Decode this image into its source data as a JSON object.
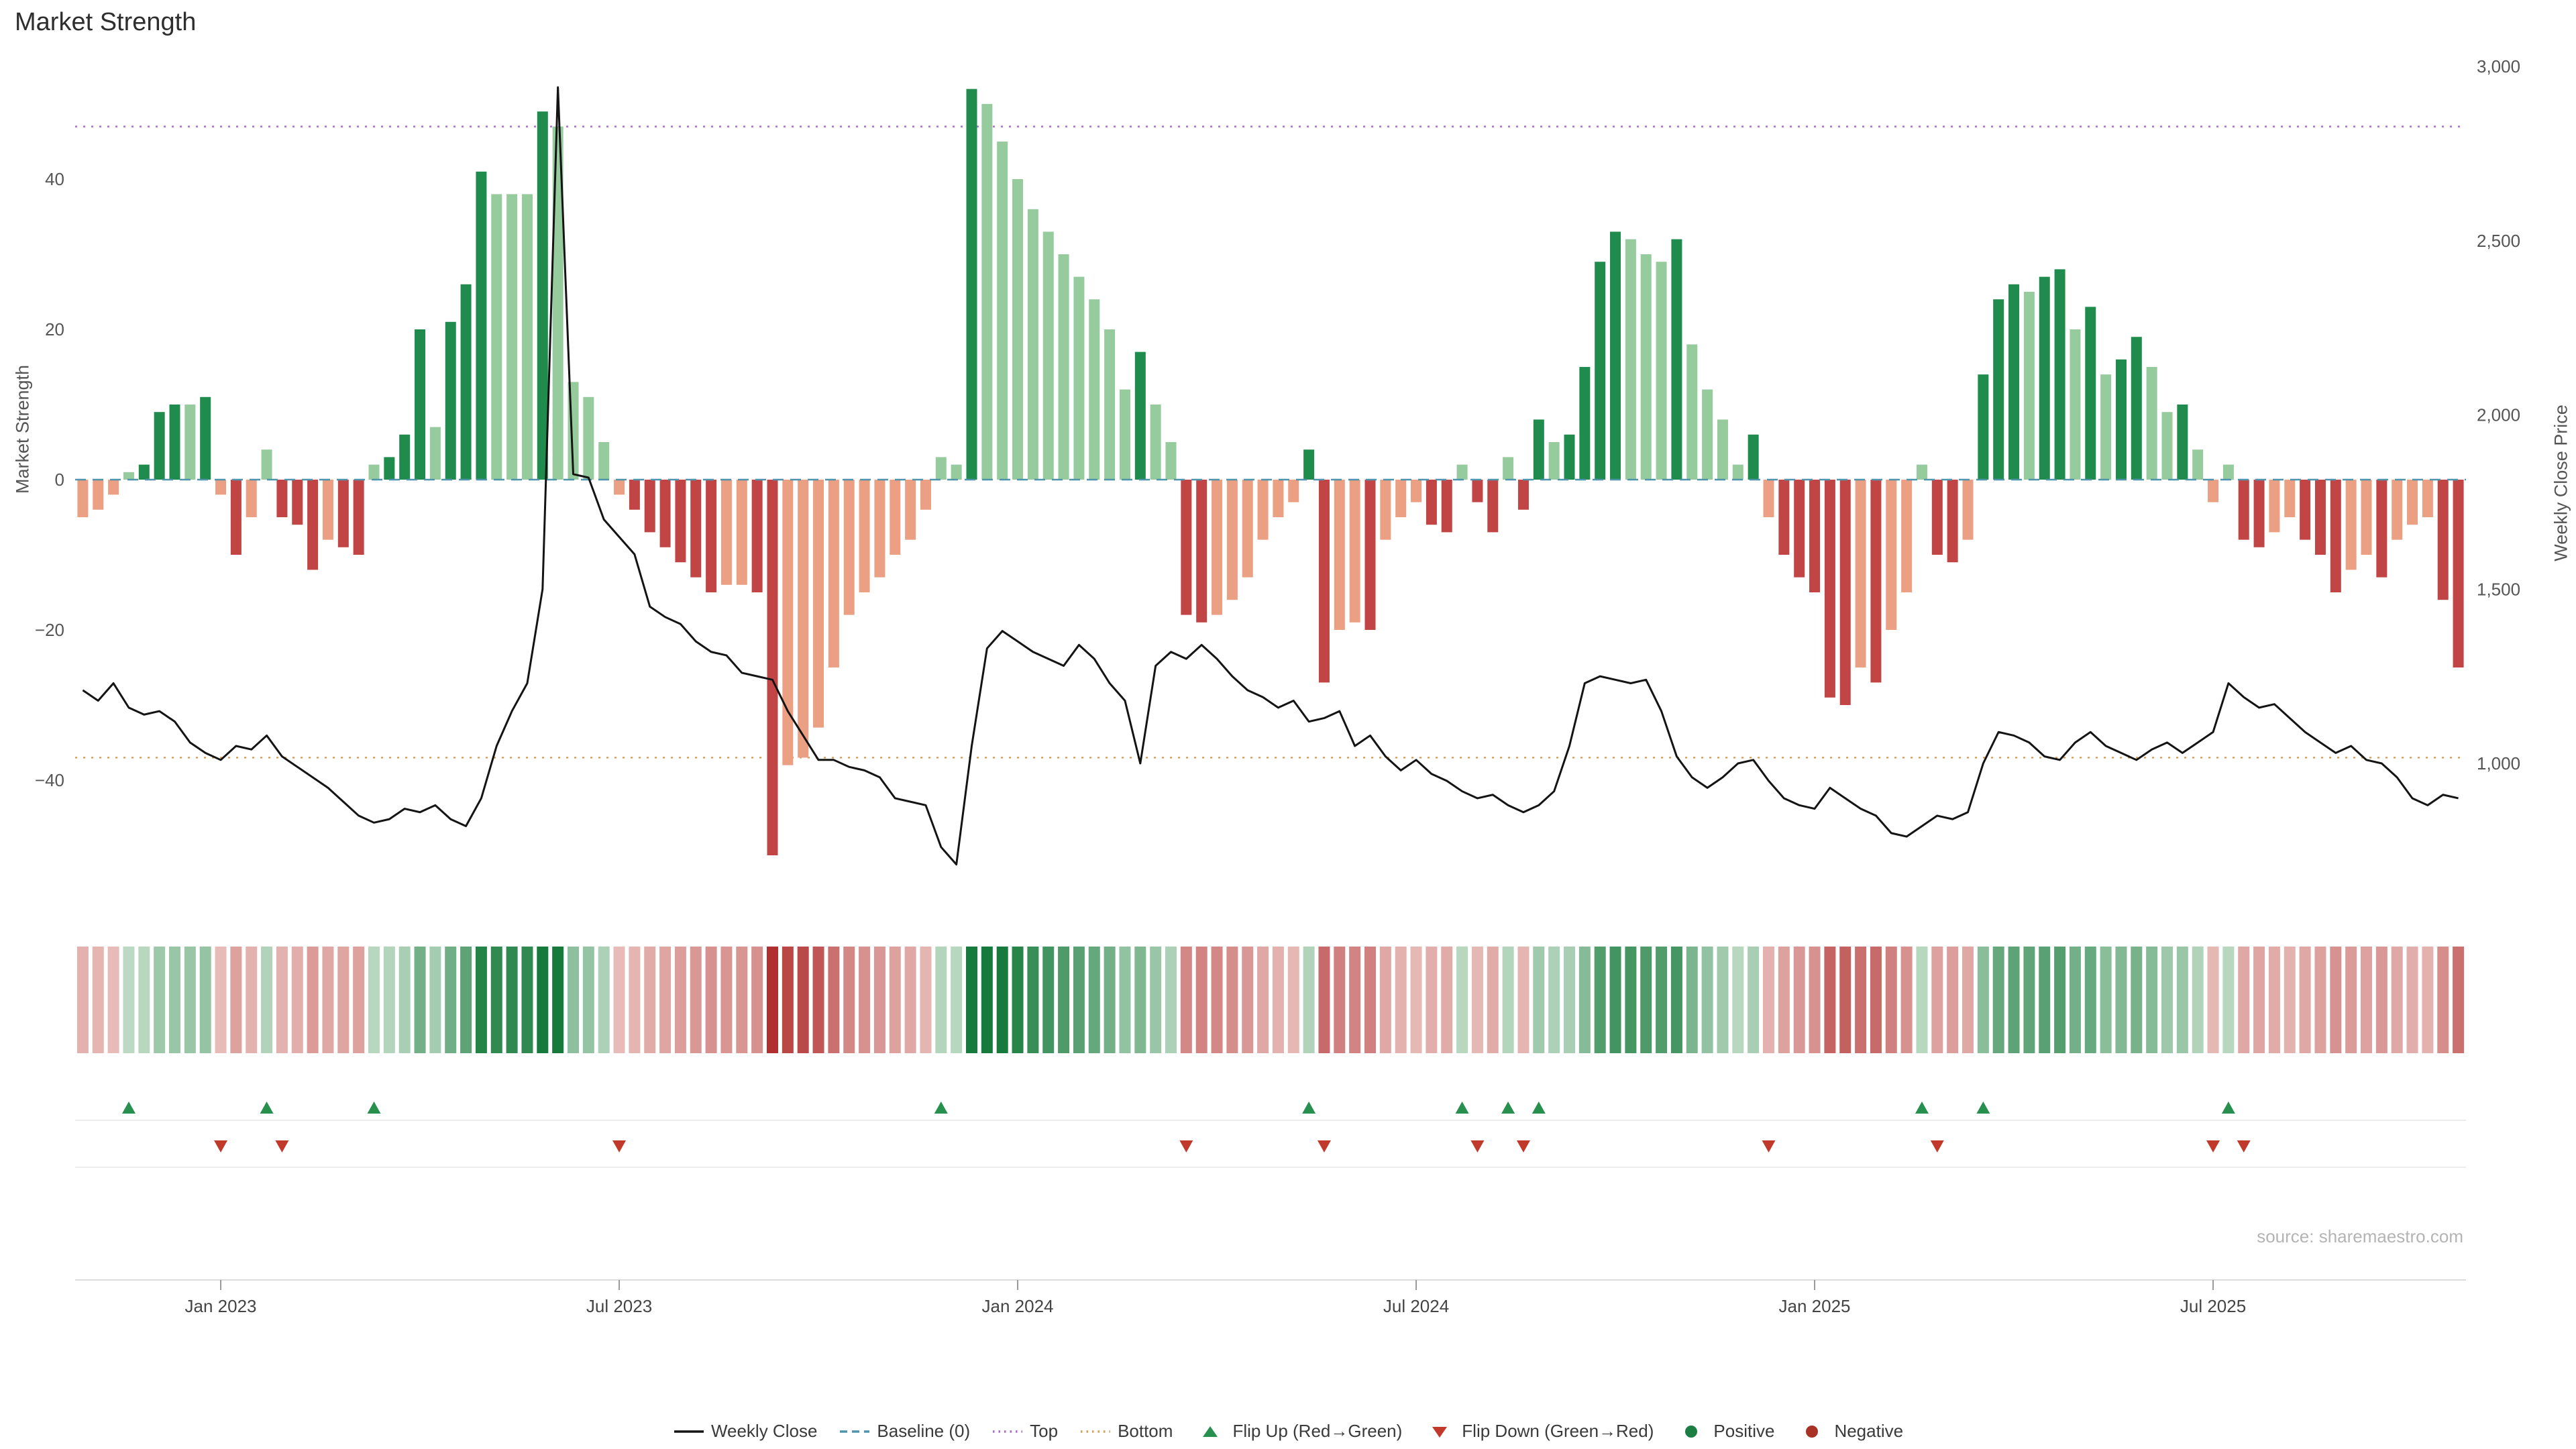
{
  "title": "Market Strength",
  "source": "source: sharemaestro.com",
  "axes": {
    "left": {
      "label": "Market Strength",
      "ticks": [
        {
          "label": "40",
          "value": 40
        },
        {
          "label": "20",
          "value": 20
        },
        {
          "label": "0",
          "value": 0
        },
        {
          "label": "−20",
          "value": -20
        },
        {
          "label": "−40",
          "value": -40
        }
      ]
    },
    "right": {
      "label": "Weekly Close Price",
      "ticks": [
        {
          "label": "3,000",
          "value": 3000
        },
        {
          "label": "2,500",
          "value": 2500
        },
        {
          "label": "2,000",
          "value": 2000
        },
        {
          "label": "1,500",
          "value": 1500
        },
        {
          "label": "1,000",
          "value": 1000
        }
      ]
    },
    "x": {
      "ticks": [
        {
          "label": "Jan 2023",
          "index": 9
        },
        {
          "label": "Jul 2023",
          "index": 35
        },
        {
          "label": "Jan 2024",
          "index": 61
        },
        {
          "label": "Jul 2024",
          "index": 87
        },
        {
          "label": "Jan 2025",
          "index": 113
        },
        {
          "label": "Jul 2025",
          "index": 139
        }
      ]
    }
  },
  "chart_data": {
    "type": "combo",
    "x_unit": "week-index",
    "n_points": 156,
    "series": [
      {
        "name": "Market Strength",
        "type": "bar",
        "axis": "left",
        "values": [
          -5,
          -4,
          -2,
          1,
          2,
          9,
          10,
          10,
          11,
          -2,
          -10,
          -5,
          4,
          -5,
          -6,
          -12,
          -8,
          -9,
          -10,
          2,
          3,
          6,
          20,
          7,
          21,
          26,
          41,
          38,
          38,
          38,
          49,
          47,
          13,
          11,
          5,
          -2,
          -4,
          -7,
          -9,
          -11,
          -13,
          -15,
          -14,
          -14,
          -15,
          -50,
          -38,
          -37,
          -33,
          -25,
          -18,
          -15,
          -13,
          -10,
          -8,
          -4,
          3,
          2,
          52,
          50,
          45,
          40,
          36,
          33,
          30,
          27,
          24,
          20,
          12,
          17,
          10,
          5,
          -18,
          -19,
          -18,
          -16,
          -13,
          -8,
          -5,
          -3,
          4,
          -27,
          -20,
          -19,
          -20,
          -8,
          -5,
          -3,
          -6,
          -7,
          2,
          -3,
          -7,
          3,
          -4,
          8,
          5,
          6,
          15,
          29,
          33,
          32,
          30,
          29,
          32,
          18,
          12,
          8,
          2,
          6,
          -5,
          -10,
          -13,
          -15,
          -29,
          -30,
          -25,
          -27,
          -20,
          -15,
          2,
          -10,
          -11,
          -8,
          14,
          24,
          26,
          25,
          27,
          28,
          20,
          23,
          14,
          16,
          19,
          15,
          9,
          10,
          4,
          -3,
          2,
          -8,
          -9,
          -7,
          -5,
          -8,
          -10,
          -15,
          -12,
          -10,
          -13,
          -8,
          -6,
          -5,
          -16,
          -25
        ]
      },
      {
        "name": "Weekly Close",
        "type": "line",
        "axis": "right",
        "values": [
          1210,
          1180,
          1230,
          1160,
          1140,
          1150,
          1120,
          1060,
          1030,
          1010,
          1050,
          1040,
          1080,
          1020,
          990,
          960,
          930,
          890,
          850,
          830,
          840,
          870,
          860,
          880,
          840,
          820,
          900,
          1050,
          1150,
          1230,
          1500,
          2940,
          1830,
          1820,
          1700,
          1650,
          1600,
          1450,
          1420,
          1400,
          1350,
          1320,
          1310,
          1260,
          1250,
          1240,
          1150,
          1080,
          1010,
          1010,
          990,
          980,
          960,
          900,
          890,
          880,
          760,
          710,
          1050,
          1330,
          1380,
          1350,
          1320,
          1300,
          1280,
          1340,
          1300,
          1230,
          1180,
          1000,
          1280,
          1320,
          1300,
          1340,
          1300,
          1250,
          1210,
          1190,
          1160,
          1180,
          1120,
          1130,
          1150,
          1050,
          1080,
          1020,
          980,
          1010,
          970,
          950,
          920,
          900,
          910,
          880,
          860,
          880,
          920,
          1050,
          1230,
          1250,
          1240,
          1230,
          1240,
          1150,
          1020,
          960,
          930,
          960,
          1000,
          1010,
          950,
          900,
          880,
          870,
          930,
          900,
          870,
          850,
          800,
          790,
          820,
          850,
          840,
          860,
          1000,
          1090,
          1080,
          1060,
          1020,
          1010,
          1060,
          1090,
          1050,
          1030,
          1010,
          1040,
          1060,
          1030,
          1060,
          1090,
          1230,
          1190,
          1160,
          1170,
          1130,
          1090,
          1060,
          1030,
          1050,
          1010,
          1000,
          960,
          900,
          880,
          910,
          900
        ]
      }
    ],
    "reference_lines": {
      "baseline": 0,
      "top": 47,
      "bottom": -37
    },
    "flip_up_indices": [
      3,
      12,
      19,
      56,
      80,
      90,
      93,
      95,
      120,
      124,
      140
    ],
    "flip_down_indices": [
      9,
      13,
      35,
      72,
      81,
      91,
      94,
      110,
      121,
      139,
      141
    ],
    "heatmap_mirrors_bars": true,
    "left_ylim": [
      -56,
      55
    ],
    "right_ylim": [
      600,
      3030
    ],
    "grid": false,
    "legend_position": "bottom"
  },
  "legend": [
    {
      "label": "Weekly Close",
      "marker": "line",
      "color": "#141414"
    },
    {
      "label": "Baseline (0)",
      "marker": "dashed-line",
      "color": "#4f94ad"
    },
    {
      "label": "Top",
      "marker": "dotted-line",
      "color": "#a86fc9"
    },
    {
      "label": "Bottom",
      "marker": "dotted-line",
      "color": "#d6a156"
    },
    {
      "label": "Flip Up (Red→Green)",
      "marker": "triangle-up",
      "color": "#27904e"
    },
    {
      "label": "Flip Down (Green→Red)",
      "marker": "triangle-down",
      "color": "#c0392b"
    },
    {
      "label": "Positive",
      "marker": "circle",
      "color": "#1c7e43"
    },
    {
      "label": "Negative",
      "marker": "circle",
      "color": "#a93226"
    }
  ],
  "colors": {
    "bar_pos_strong": "#1f8b4c",
    "bar_pos_weak": "#96cb9d",
    "bar_neg_strong": "#c24545",
    "bar_neg_weak": "#eb9f83",
    "price_line": "#141414",
    "baseline": "#4f94ad",
    "top_line": "#a86fc9",
    "bottom_line": "#d6a156",
    "heat_pos_strong": "#157a3b",
    "heat_pos_pale": "#e4f1e4",
    "heat_neg_strong": "#b03030",
    "heat_neg_pale": "#f7e2dd"
  }
}
